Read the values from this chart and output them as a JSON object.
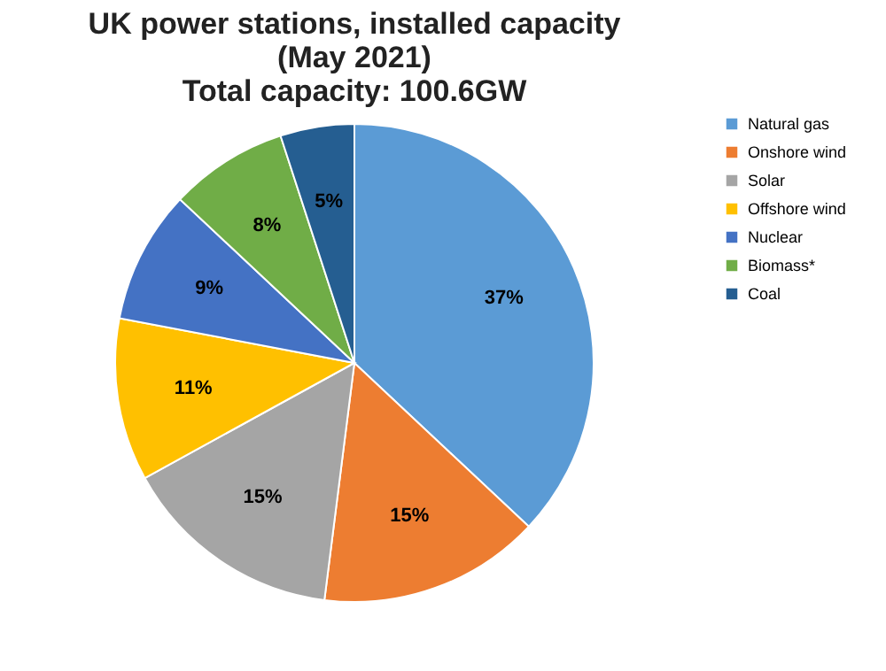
{
  "chart_data": {
    "type": "pie",
    "title": [
      "UK power stations, installed capacity",
      "(May 2021)",
      "Total capacity: 100.6GW"
    ],
    "categories": [
      "Natural gas",
      "Onshore wind",
      "Solar",
      "Offshore wind",
      "Nuclear",
      "Biomass*",
      "Coal"
    ],
    "values": [
      37,
      15,
      15,
      11,
      9,
      8,
      5
    ],
    "value_labels": [
      "37%",
      "15%",
      "15%",
      "11%",
      "9%",
      "8%",
      "5%"
    ],
    "colors": [
      "#5b9bd5",
      "#ed7d31",
      "#a5a5a5",
      "#ffc000",
      "#4472c4",
      "#70ad47",
      "#255e91"
    ],
    "legend": "right"
  }
}
